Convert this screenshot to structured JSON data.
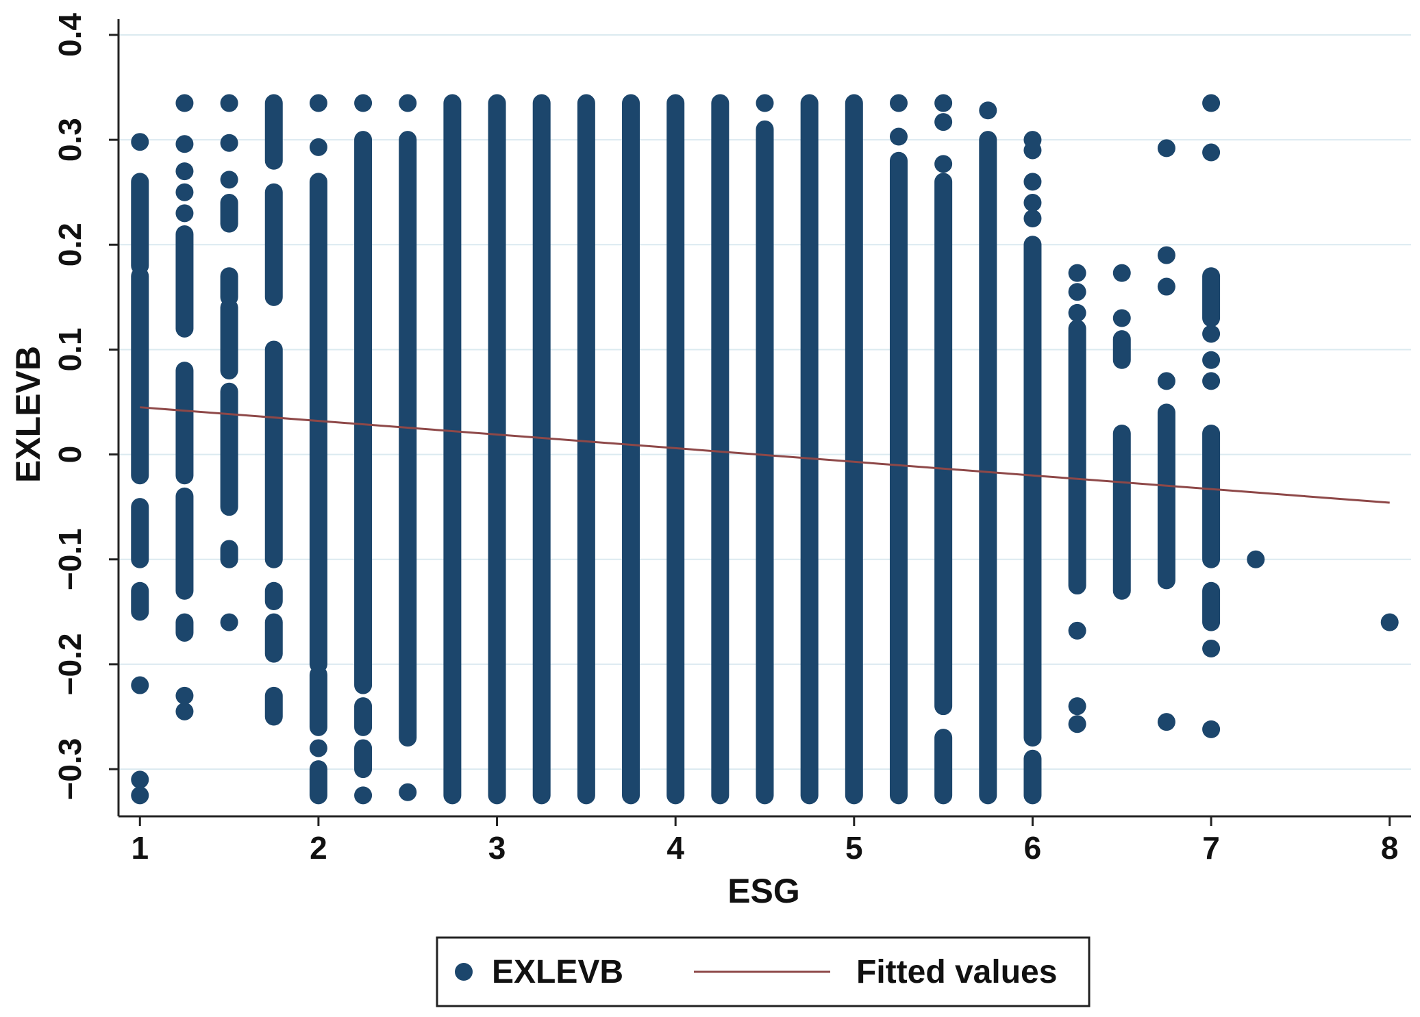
{
  "chart_data": {
    "type": "scatter",
    "title": "",
    "xlabel": "ESG",
    "ylabel": "EXLEVB",
    "xlim": [
      0.88,
      8.12
    ],
    "ylim": [
      -0.345,
      0.415
    ],
    "x_ticks": [
      1,
      2,
      3,
      4,
      5,
      6,
      7,
      8
    ],
    "y_ticks": [
      -0.3,
      -0.2,
      -0.1,
      0,
      0.1,
      0.2,
      0.3,
      0.4
    ],
    "y_tick_labels": [
      "−0.3",
      "−0.2",
      "−0.1",
      "0",
      "0.1",
      "0.2",
      "0.3",
      "0.4"
    ],
    "grid": true,
    "legend_position": "bottom",
    "colors": {
      "points": "#1c466c",
      "fit": "#8e4848",
      "grid": "#dbeaf0",
      "axis": "#222222"
    },
    "series": [
      {
        "name": "EXLEVB",
        "kind": "scatter",
        "segments": [
          {
            "x": 1.0,
            "ranges": [
              [
                0.18,
                0.26
              ],
              [
                -0.02,
                0.17
              ],
              [
                -0.1,
                -0.05
              ],
              [
                -0.15,
                -0.13
              ]
            ],
            "points": [
              0.298,
              -0.22,
              -0.31,
              -0.325
            ]
          },
          {
            "x": 1.25,
            "ranges": [
              [
                0.12,
                0.21
              ],
              [
                -0.02,
                0.08
              ],
              [
                -0.13,
                -0.04
              ],
              [
                -0.17,
                -0.16
              ]
            ],
            "points": [
              0.335,
              0.296,
              0.27,
              0.25,
              0.23,
              -0.23,
              -0.245
            ]
          },
          {
            "x": 1.5,
            "ranges": [
              [
                0.22,
                0.24
              ],
              [
                0.15,
                0.17
              ],
              [
                0.08,
                0.14
              ],
              [
                -0.05,
                0.06
              ],
              [
                -0.1,
                -0.09
              ]
            ],
            "points": [
              0.335,
              0.297,
              0.262,
              -0.16
            ]
          },
          {
            "x": 1.75,
            "ranges": [
              [
                0.28,
                0.335
              ],
              [
                0.15,
                0.25
              ],
              [
                -0.1,
                0.1
              ],
              [
                -0.14,
                -0.13
              ],
              [
                -0.19,
                -0.16
              ],
              [
                -0.25,
                -0.23
              ]
            ],
            "points": []
          },
          {
            "x": 2.0,
            "ranges": [
              [
                -0.2,
                0.26
              ],
              [
                -0.26,
                -0.21
              ],
              [
                -0.325,
                -0.3
              ]
            ],
            "points": [
              0.335,
              0.293,
              -0.28
            ]
          },
          {
            "x": 2.25,
            "ranges": [
              [
                -0.22,
                0.3
              ],
              [
                -0.26,
                -0.24
              ],
              [
                -0.3,
                -0.28
              ]
            ],
            "points": [
              0.335,
              -0.325
            ]
          },
          {
            "x": 2.5,
            "ranges": [
              [
                -0.27,
                0.3
              ]
            ],
            "points": [
              0.335,
              -0.322
            ]
          },
          {
            "x": 2.75,
            "ranges": [
              [
                -0.325,
                0.335
              ]
            ],
            "points": []
          },
          {
            "x": 3.0,
            "ranges": [
              [
                -0.325,
                0.335
              ]
            ],
            "points": []
          },
          {
            "x": 3.25,
            "ranges": [
              [
                -0.325,
                0.335
              ]
            ],
            "points": []
          },
          {
            "x": 3.5,
            "ranges": [
              [
                -0.325,
                0.335
              ]
            ],
            "points": []
          },
          {
            "x": 3.75,
            "ranges": [
              [
                -0.325,
                0.335
              ]
            ],
            "points": []
          },
          {
            "x": 4.0,
            "ranges": [
              [
                -0.325,
                0.335
              ]
            ],
            "points": []
          },
          {
            "x": 4.25,
            "ranges": [
              [
                -0.325,
                0.335
              ]
            ],
            "points": []
          },
          {
            "x": 4.5,
            "ranges": [
              [
                -0.325,
                0.31
              ]
            ],
            "points": [
              0.335
            ]
          },
          {
            "x": 4.75,
            "ranges": [
              [
                -0.325,
                0.335
              ]
            ],
            "points": []
          },
          {
            "x": 5.0,
            "ranges": [
              [
                -0.325,
                0.335
              ]
            ],
            "points": []
          },
          {
            "x": 5.25,
            "ranges": [
              [
                -0.325,
                0.28
              ]
            ],
            "points": [
              0.335,
              0.303
            ]
          },
          {
            "x": 5.5,
            "ranges": [
              [
                -0.24,
                0.26
              ],
              [
                -0.325,
                -0.27
              ]
            ],
            "points": [
              0.335,
              0.317,
              0.277
            ]
          },
          {
            "x": 5.75,
            "ranges": [
              [
                -0.325,
                0.3
              ]
            ],
            "points": [
              0.328
            ]
          },
          {
            "x": 6.0,
            "ranges": [
              [
                -0.27,
                0.2
              ],
              [
                -0.325,
                -0.29
              ]
            ],
            "points": [
              0.3,
              0.29,
              0.26,
              0.24,
              0.225
            ]
          },
          {
            "x": 6.25,
            "ranges": [
              [
                -0.125,
                0.12
              ]
            ],
            "points": [
              0.173,
              0.155,
              0.135,
              -0.168,
              -0.24,
              -0.257
            ]
          },
          {
            "x": 6.5,
            "ranges": [
              [
                0.09,
                0.11
              ],
              [
                -0.13,
                0.02
              ]
            ],
            "points": [
              0.173,
              0.13
            ]
          },
          {
            "x": 6.75,
            "ranges": [
              [
                -0.12,
                0.04
              ]
            ],
            "points": [
              0.292,
              0.19,
              0.16,
              0.07,
              -0.255
            ]
          },
          {
            "x": 7.0,
            "ranges": [
              [
                0.13,
                0.17
              ],
              [
                -0.1,
                0.02
              ],
              [
                -0.16,
                -0.13
              ]
            ],
            "points": [
              0.335,
              0.288,
              0.115,
              0.09,
              0.07,
              -0.185,
              -0.262
            ]
          },
          {
            "x": 7.25,
            "ranges": [],
            "points": [
              -0.1
            ]
          },
          {
            "x": 8.0,
            "ranges": [],
            "points": [
              -0.16
            ]
          }
        ]
      },
      {
        "name": "Fitted values",
        "kind": "line",
        "x": [
          1,
          8
        ],
        "y": [
          0.045,
          -0.046
        ]
      }
    ]
  }
}
